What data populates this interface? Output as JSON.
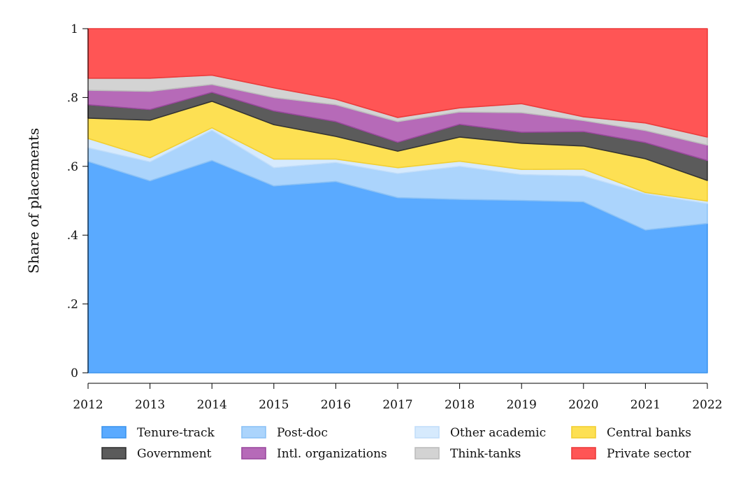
{
  "chart_data": {
    "type": "area",
    "stacked": true,
    "title": "",
    "xlabel": "",
    "ylabel": "Share of placements",
    "x": [
      2012,
      2013,
      2014,
      2015,
      2016,
      2017,
      2018,
      2019,
      2020,
      2021,
      2022
    ],
    "xticks": [
      "2012",
      "2013",
      "2014",
      "2015",
      "2016",
      "2017",
      "2018",
      "2019",
      "2020",
      "2021",
      "2022"
    ],
    "ylim": [
      0,
      1
    ],
    "yticks": [
      0,
      0.2,
      0.4,
      0.6,
      0.8,
      1
    ],
    "ytick_labels": [
      "0",
      ".2",
      ".4",
      ".6",
      ".8",
      "1"
    ],
    "grid": "horizontal",
    "legend_position": "bottom",
    "legend_columns": 4,
    "series": [
      {
        "name": "Tenure-track",
        "fill": "#5aaaff",
        "stroke": "#3d95ee",
        "values": [
          0.614,
          0.558,
          0.617,
          0.543,
          0.556,
          0.509,
          0.504,
          0.501,
          0.497,
          0.415,
          0.434
        ]
      },
      {
        "name": "Post-doc",
        "fill": "#abd4fc",
        "stroke": "#8cc2f6",
        "values": [
          0.04,
          0.055,
          0.088,
          0.053,
          0.055,
          0.07,
          0.096,
          0.075,
          0.075,
          0.105,
          0.058
        ]
      },
      {
        "name": "Other academic",
        "fill": "#d6eafd",
        "stroke": "#c2defa",
        "values": [
          0.027,
          0.012,
          0.007,
          0.025,
          0.01,
          0.017,
          0.015,
          0.015,
          0.02,
          0.004,
          0.007
        ]
      },
      {
        "name": "Central banks",
        "fill": "#fde053",
        "stroke": "#f2cf32",
        "values": [
          0.059,
          0.109,
          0.077,
          0.1,
          0.066,
          0.048,
          0.07,
          0.076,
          0.067,
          0.098,
          0.06
        ]
      },
      {
        "name": "Government",
        "fill": "#5b5b5b",
        "stroke": "#333333",
        "values": [
          0.039,
          0.031,
          0.026,
          0.04,
          0.043,
          0.026,
          0.037,
          0.032,
          0.042,
          0.047,
          0.058
        ]
      },
      {
        "name": "Intl. organizations",
        "fill": "#b66ab8",
        "stroke": "#9b4a9e",
        "values": [
          0.042,
          0.053,
          0.023,
          0.039,
          0.049,
          0.06,
          0.036,
          0.057,
          0.032,
          0.035,
          0.045
        ]
      },
      {
        "name": "Think-tanks",
        "fill": "#d3d3d3",
        "stroke": "#bdbdbd",
        "values": [
          0.035,
          0.038,
          0.027,
          0.028,
          0.016,
          0.012,
          0.012,
          0.026,
          0.011,
          0.022,
          0.023
        ]
      },
      {
        "name": "Private sector",
        "fill": "#ff5555",
        "stroke": "#ec3b3b",
        "values": [
          0.144,
          0.144,
          0.135,
          0.172,
          0.205,
          0.258,
          0.23,
          0.218,
          0.256,
          0.274,
          0.315
        ]
      }
    ]
  }
}
